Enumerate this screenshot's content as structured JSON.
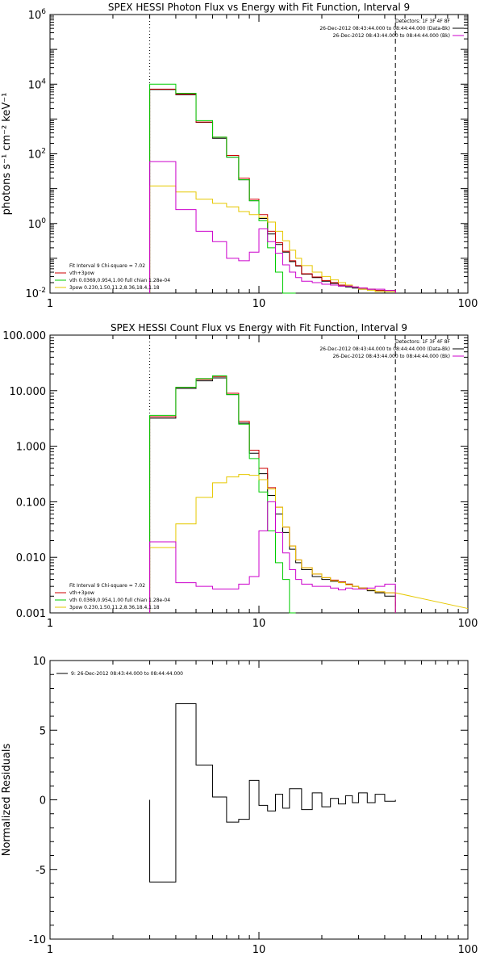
{
  "chart_data": [
    {
      "type": "line",
      "title": "SPEX HESSI Photon Flux vs Energy with Fit Function, Interval 9",
      "ylabel": "photons s⁻¹ cm⁻² keV⁻¹",
      "xlabel": "",
      "x_scale": "log",
      "y_scale": "log",
      "xlim": [
        1,
        100
      ],
      "ylim": [
        0.01,
        1000000
      ],
      "x_ticks": [
        {
          "v": 1,
          "label": "1"
        },
        {
          "v": 10,
          "label": "10"
        },
        {
          "v": 100,
          "label": "100"
        }
      ],
      "y_ticks": [
        {
          "v": 0.01,
          "label": "10",
          "exp": "-2"
        },
        {
          "v": 1,
          "label": "10",
          "exp": "0"
        },
        {
          "v": 100,
          "label": "10",
          "exp": "2"
        },
        {
          "v": 10000,
          "label": "10",
          "exp": "4"
        },
        {
          "v": 1000000,
          "label": "10",
          "exp": "6"
        }
      ],
      "vlines": [
        {
          "x": 3,
          "style": "dotted"
        },
        {
          "x": 45,
          "style": "dashed"
        }
      ],
      "legend_top_right": [
        {
          "text": "Detectors: 1F 3F 4F 8F",
          "color": ""
        },
        {
          "text": "26-Dec-2012 08:43:44.000 to 08:44:44.000 (Data-Bk)",
          "color": "#000000"
        },
        {
          "text": "26-Dec-2012 08:43:44.000 to 08:44:44.000 (Bk)",
          "color": "#cc00cc"
        }
      ],
      "legend_bottom_left": [
        {
          "text": "Fit Interval 9    Chi-square = 7.02",
          "color": ""
        },
        {
          "text": "vth+3pow",
          "color": "#cc0000"
        },
        {
          "text": "vth 0.0369,0.954,1.00  full chian 1.28e-04",
          "color": "#00cc00"
        },
        {
          "text": "3pow 0.230,1.50,11.2,8.36,18.4,1.18",
          "color": "#e6c800"
        }
      ],
      "edges": [
        3,
        4,
        5,
        6,
        7,
        8,
        9,
        10,
        11,
        12,
        13,
        14,
        15,
        16,
        18,
        20,
        22,
        24,
        26,
        28,
        30,
        33,
        36,
        40,
        45
      ],
      "series": [
        {
          "color": "#000000",
          "values": [
            7000,
            5000,
            800,
            280,
            80,
            18,
            4.5,
            1.4,
            0.5,
            0.25,
            0.15,
            0.08,
            0.06,
            0.035,
            0.028,
            0.022,
            0.019,
            0.016,
            0.015,
            0.014,
            0.013,
            0.013,
            0.012,
            0.012
          ]
        },
        {
          "color": "#cc0000",
          "values": [
            7200,
            5200,
            820,
            300,
            90,
            20,
            5,
            1.8,
            0.6,
            0.28,
            0.16,
            0.085,
            0.062,
            0.036,
            0.029,
            0.023,
            0.02,
            0.017,
            0.016,
            0.015,
            0.014,
            0.013,
            0.012,
            0.012
          ]
        },
        {
          "color": "#00cc00",
          "values": [
            10000,
            5500,
            900,
            300,
            80,
            18,
            4.5,
            1.2,
            0.2,
            0.04,
            0.01,
            0.003
          ]
        },
        {
          "color": "#e6c800",
          "values": [
            12,
            8,
            5,
            3.8,
            3,
            2.2,
            1.8,
            1.5,
            1.1,
            0.6,
            0.32,
            0.17,
            0.1,
            0.062,
            0.04,
            0.03,
            0.024,
            0.02,
            0.017,
            0.015,
            0.013,
            0.012,
            0.011,
            0.011
          ]
        },
        {
          "color": "#cc00cc",
          "values": [
            60,
            2.5,
            0.6,
            0.3,
            0.1,
            0.085,
            0.15,
            0.7,
            0.3,
            0.14,
            0.065,
            0.04,
            0.028,
            0.022,
            0.02,
            0.018,
            0.017,
            0.016,
            0.016,
            0.015,
            0.014,
            0.013,
            0.013,
            0.012
          ]
        }
      ]
    },
    {
      "type": "line",
      "title": "SPEX HESSI Count Flux vs Energy with Fit Function, Interval 9",
      "ylabel": "",
      "xlabel": "",
      "x_scale": "log",
      "y_scale": "log",
      "xlim": [
        1,
        100
      ],
      "ylim": [
        0.001,
        100
      ],
      "x_ticks": [
        {
          "v": 1,
          "label": "1"
        },
        {
          "v": 10,
          "label": "10"
        },
        {
          "v": 100,
          "label": "100"
        }
      ],
      "y_ticks": [
        {
          "v": 0.001,
          "label": "0.001"
        },
        {
          "v": 0.01,
          "label": "0.010"
        },
        {
          "v": 0.1,
          "label": "0.100"
        },
        {
          "v": 1,
          "label": "1.000"
        },
        {
          "v": 10,
          "label": "10.000"
        },
        {
          "v": 100,
          "label": "100.000"
        }
      ],
      "vlines": [
        {
          "x": 3,
          "style": "dotted"
        },
        {
          "x": 45,
          "style": "dashed"
        }
      ],
      "legend_top_right": [
        {
          "text": "Detectors: 1F 3F 4F 8F",
          "color": ""
        },
        {
          "text": "26-Dec-2012 08:43:44.000 to 08:44:44.000 (Data-Bk)",
          "color": "#000000"
        },
        {
          "text": "26-Dec-2012 08:43:44.000 to 08:44:44.000 (Bk)",
          "color": "#cc00cc"
        }
      ],
      "legend_bottom_left": [
        {
          "text": "Fit Interval 9    Chi-square = 7.02",
          "color": ""
        },
        {
          "text": "vth+3pow",
          "color": "#cc0000"
        },
        {
          "text": "vth 0.0369,0.954,1.00  full chian 1.28e-04",
          "color": "#00cc00"
        },
        {
          "text": "3pow 0.230,1.50,11.2,8.36,18.4,1.18",
          "color": "#e6c800"
        }
      ],
      "edges": [
        3,
        4,
        5,
        6,
        7,
        8,
        9,
        10,
        11,
        12,
        13,
        14,
        15,
        16,
        18,
        20,
        22,
        24,
        26,
        28,
        30,
        33,
        36,
        40,
        45
      ],
      "series": [
        {
          "color": "#000000",
          "values": [
            3.2,
            11,
            15,
            17,
            8.5,
            2.6,
            0.75,
            0.32,
            0.13,
            0.06,
            0.028,
            0.014,
            0.008,
            0.006,
            0.0045,
            0.004,
            0.0037,
            0.0036,
            0.0033,
            0.003,
            0.0028,
            0.0025,
            0.0023,
            0.002
          ]
        },
        {
          "color": "#cc0000",
          "values": [
            3.4,
            11.5,
            16,
            18,
            9,
            2.8,
            0.85,
            0.4,
            0.18,
            0.08,
            0.035,
            0.016,
            0.009,
            0.0065,
            0.005,
            0.0043,
            0.0039,
            0.0036,
            0.0033,
            0.003,
            0.0028,
            0.0026,
            0.0024,
            0.0023
          ]
        },
        {
          "color": "#00cc00",
          "values": [
            3.6,
            11.5,
            16.5,
            18.5,
            8.5,
            2.5,
            0.6,
            0.15,
            0.03,
            0.008,
            0.004,
            0.001
          ]
        },
        {
          "color": "#e6c800",
          "values": [
            0.015,
            0.04,
            0.12,
            0.22,
            0.28,
            0.31,
            0.3,
            0.25,
            0.17,
            0.08,
            0.035,
            0.016,
            0.009,
            0.0065,
            0.005,
            0.0043,
            0.0038,
            0.0035,
            0.0032,
            0.003,
            0.0028,
            0.0026,
            0.0024,
            0.0023
          ]
        },
        {
          "color": "#cc00cc",
          "values": [
            0.019,
            0.0035,
            0.003,
            0.0027,
            0.0027,
            0.0033,
            0.0045,
            0.03,
            0.1,
            0.028,
            0.012,
            0.006,
            0.004,
            0.0033,
            0.003,
            0.003,
            0.0028,
            0.0026,
            0.0028,
            0.0027,
            0.0027,
            0.0028,
            0.003,
            0.0033
          ]
        }
      ],
      "extra_line": {
        "color": "#e6c800",
        "x": [
          45,
          100
        ],
        "y": [
          0.0023,
          0.0012
        ]
      }
    },
    {
      "type": "line",
      "title": "",
      "ylabel": "Normalized Residuals",
      "xlabel": "",
      "x_scale": "log",
      "y_scale": "linear",
      "xlim": [
        1,
        100
      ],
      "ylim": [
        -10,
        10
      ],
      "x_ticks": [
        {
          "v": 1,
          "label": "1"
        },
        {
          "v": 10,
          "label": "10"
        },
        {
          "v": 100,
          "label": "100"
        }
      ],
      "y_ticks": [
        {
          "v": 10,
          "label": "10"
        },
        {
          "v": 5,
          "label": "5"
        },
        {
          "v": 0,
          "label": "0"
        },
        {
          "v": -5,
          "label": "-5"
        },
        {
          "v": -10,
          "label": "-10"
        }
      ],
      "legend_top_left": [
        {
          "text": "9: 26-Dec-2012 08:43:44.000 to 08:44:44.000",
          "color": "#000000"
        }
      ],
      "edges": [
        3,
        4,
        5,
        6,
        7,
        8,
        9,
        10,
        11,
        12,
        13,
        14,
        15,
        16,
        18,
        20,
        22,
        24,
        26,
        28,
        30,
        33,
        36,
        40,
        45
      ],
      "series": [
        {
          "color": "#000000",
          "values": [
            -5.9,
            6.9,
            2.5,
            0.2,
            -1.6,
            -1.4,
            1.4,
            -0.4,
            -0.8,
            0.4,
            -0.6,
            0.8,
            0.8,
            -0.7,
            0.5,
            -0.5,
            0.1,
            -0.3,
            0.3,
            -0.2,
            0.5,
            -0.2,
            0.4,
            -0.1
          ]
        }
      ]
    }
  ]
}
